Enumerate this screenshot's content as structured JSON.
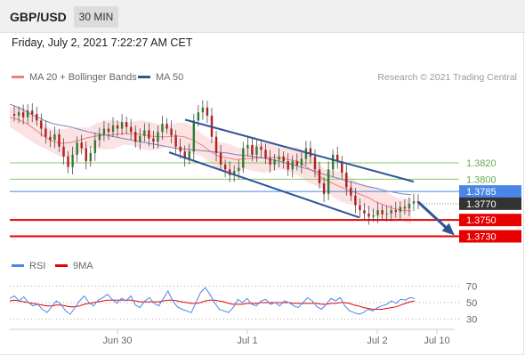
{
  "header": {
    "symbol": "GBP/USD",
    "timeframe": "30 MIN"
  },
  "datetime": "Friday, July 2, 2021 7:22:27 AM CET",
  "credit": "Research © 2021 Trading Central",
  "chart_data": [
    {
      "type": "line",
      "ylim": [
        1.3712,
        1.3915
      ],
      "x_ticks": [
        "Jun 30",
        "Jul 1",
        "Jul 2",
        "Jul 10"
      ],
      "legend": [
        {
          "name": "MA 20 + Bollinger Bands",
          "color": "#f08080"
        },
        {
          "name": "MA 50",
          "color": "#2f5597"
        }
      ],
      "levels": [
        {
          "value": 1.382,
          "label": "1.3820",
          "color": "#8cc864",
          "kind": "resistance"
        },
        {
          "value": 1.38,
          "label": "1.3800",
          "color": "#8cc864",
          "kind": "resistance"
        },
        {
          "value": 1.3785,
          "label": "1.3785",
          "color": "#4a86e8",
          "kind": "pivot"
        },
        {
          "value": 1.377,
          "label": "1.3770",
          "color": "#333333",
          "kind": "last"
        },
        {
          "value": 1.375,
          "label": "1.3750",
          "color": "#e60000",
          "kind": "support"
        },
        {
          "value": 1.373,
          "label": "1.3730",
          "color": "#e60000",
          "kind": "support"
        }
      ],
      "price_series": [
        1.388,
        1.3878,
        1.3882,
        1.3876,
        1.3884,
        1.388,
        1.3872,
        1.3862,
        1.3852,
        1.3848,
        1.3855,
        1.384,
        1.3828,
        1.3815,
        1.383,
        1.3845,
        1.3838,
        1.3822,
        1.3832,
        1.3848,
        1.3855,
        1.3862,
        1.3858,
        1.3866,
        1.3862,
        1.387,
        1.3864,
        1.3858,
        1.3846,
        1.3853,
        1.386,
        1.385,
        1.3846,
        1.3858,
        1.3868,
        1.3862,
        1.3854,
        1.384,
        1.3834,
        1.3825,
        1.3834,
        1.3872,
        1.3882,
        1.3888,
        1.3878,
        1.3852,
        1.3832,
        1.3818,
        1.3812,
        1.3805,
        1.381,
        1.3814,
        1.3838,
        1.3842,
        1.383,
        1.384,
        1.3836,
        1.3826,
        1.3818,
        1.3824,
        1.3828,
        1.3822,
        1.3812,
        1.3822,
        1.3817,
        1.3825,
        1.3838,
        1.3828,
        1.3812,
        1.3795,
        1.3782,
        1.3812,
        1.383,
        1.3822,
        1.3808,
        1.379,
        1.378,
        1.3768,
        1.3762,
        1.3758,
        1.3754,
        1.3756,
        1.3762,
        1.3757,
        1.3758,
        1.3762,
        1.376,
        1.3766,
        1.3764,
        1.377,
        1.3773,
        1.3771
      ],
      "ma20": [
        1.3876,
        1.3873,
        1.3868,
        1.386,
        1.3852,
        1.3846,
        1.3844,
        1.3845,
        1.3848,
        1.3851,
        1.3853,
        1.3854,
        1.3855,
        1.3856,
        1.3856,
        1.3855,
        1.3853,
        1.3852,
        1.3852,
        1.3853,
        1.3852,
        1.3848,
        1.3842,
        1.3834,
        1.3828,
        1.3826,
        1.3824,
        1.3825,
        1.3826,
        1.3826,
        1.3827,
        1.3826,
        1.3824,
        1.3822,
        1.3815,
        1.3808,
        1.38,
        1.3795,
        1.379,
        1.3786,
        1.3782,
        1.3778,
        1.3772,
        1.3768,
        1.3764,
        1.3762,
        1.3761
      ],
      "ma50": [
        1.3892,
        1.3888,
        1.3882,
        1.3877,
        1.3872,
        1.3868,
        1.3866,
        1.3864,
        1.3861,
        1.3858,
        1.3856,
        1.3854,
        1.3852,
        1.385,
        1.3848,
        1.3846,
        1.3844,
        1.3842,
        1.384,
        1.3838,
        1.3837,
        1.3836,
        1.3835,
        1.3834,
        1.3833,
        1.3832,
        1.383,
        1.3829,
        1.3828,
        1.3826,
        1.3824,
        1.3822,
        1.3819,
        1.3816,
        1.3813,
        1.381,
        1.3806,
        1.3803,
        1.38,
        1.3797,
        1.3794,
        1.3791,
        1.3789,
        1.3786,
        1.3784,
        1.3782,
        1.3781
      ],
      "bb_width": 0.0015,
      "channel": {
        "upper": [
          1.3873,
          1.3797
        ],
        "lower": [
          1.3833,
          1.3753
        ]
      },
      "forecast": {
        "from": 1.3772,
        "to": 1.3734
      }
    },
    {
      "type": "line",
      "ylim": [
        20,
        80
      ],
      "levels": [
        70,
        50,
        30
      ],
      "legend": [
        {
          "name": "RSI",
          "color": "#4a86e8"
        },
        {
          "name": "9MA",
          "color": "#e60000"
        }
      ],
      "rsi": [
        55,
        58,
        52,
        57,
        50,
        46,
        48,
        42,
        38,
        45,
        52,
        48,
        40,
        36,
        44,
        52,
        58,
        50,
        46,
        53,
        56,
        60,
        54,
        49,
        55,
        52,
        58,
        47,
        44,
        52,
        56,
        49,
        46,
        55,
        64,
        52,
        45,
        42,
        40,
        38,
        50,
        62,
        68,
        60,
        50,
        42,
        40,
        38,
        44,
        54,
        50,
        55,
        48,
        46,
        52,
        54,
        48,
        50,
        46,
        52,
        50,
        46,
        44,
        50,
        56,
        52,
        45,
        42,
        48,
        55,
        52,
        56,
        46,
        40,
        38,
        36,
        38,
        42,
        40,
        44,
        46,
        48,
        52,
        49,
        54,
        53,
        56,
        55
      ],
      "ma9": [
        52,
        53,
        52,
        51,
        50,
        49,
        48,
        47,
        46,
        46,
        47,
        47,
        46,
        45,
        45,
        46,
        48,
        49,
        50,
        51,
        52,
        53,
        53,
        53,
        53,
        53,
        53,
        52,
        51,
        51,
        51,
        51,
        51,
        52,
        53,
        53,
        52,
        51,
        50,
        49,
        49,
        50,
        52,
        53,
        53,
        52,
        51,
        49,
        48,
        48,
        48,
        49,
        49,
        49,
        50,
        50,
        50,
        50,
        50,
        50,
        50,
        49,
        49,
        49,
        49,
        49,
        49,
        48,
        48,
        49,
        49,
        50,
        50,
        49,
        47,
        46,
        44,
        43,
        42,
        42,
        42,
        43,
        44,
        45,
        47,
        49,
        51,
        52
      ]
    }
  ]
}
